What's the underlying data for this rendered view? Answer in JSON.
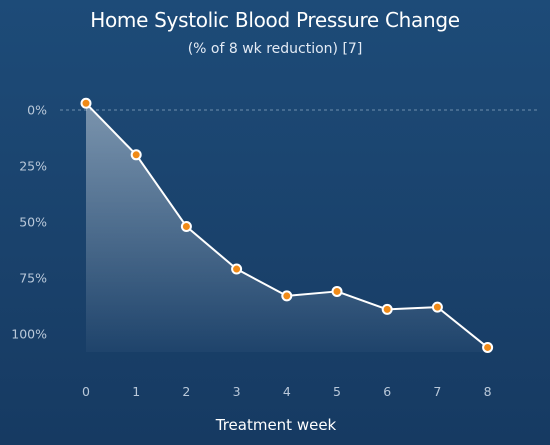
{
  "chart_data": {
    "type": "area",
    "title": "Home Systolic Blood Pressure Change",
    "subtitle": "(% of 8 wk reduction) [7]",
    "xlabel": "Treatment week",
    "ylabel": "",
    "x": [
      0,
      1,
      2,
      3,
      4,
      5,
      6,
      7,
      8
    ],
    "x_tick_labels": [
      "0",
      "1",
      "2",
      "3",
      "4",
      "5",
      "6",
      "7",
      "8"
    ],
    "y_tick_values": [
      0,
      25,
      50,
      75,
      100
    ],
    "y_tick_labels": [
      "0%",
      "25%",
      "50%",
      "75%",
      "100%"
    ],
    "y_axis_inverted": true,
    "ylim": [
      -3,
      112
    ],
    "series": [
      {
        "values": [
          -3,
          20,
          52,
          71,
          83,
          81,
          89,
          88,
          106
        ]
      }
    ],
    "reference_line": 0,
    "grid": false,
    "colors": {
      "line": "#ffffff",
      "marker_fill": "#f08a17",
      "marker_stroke": "#ffffff",
      "area": "#ffffff",
      "reference_line": "#6f8fae"
    }
  }
}
